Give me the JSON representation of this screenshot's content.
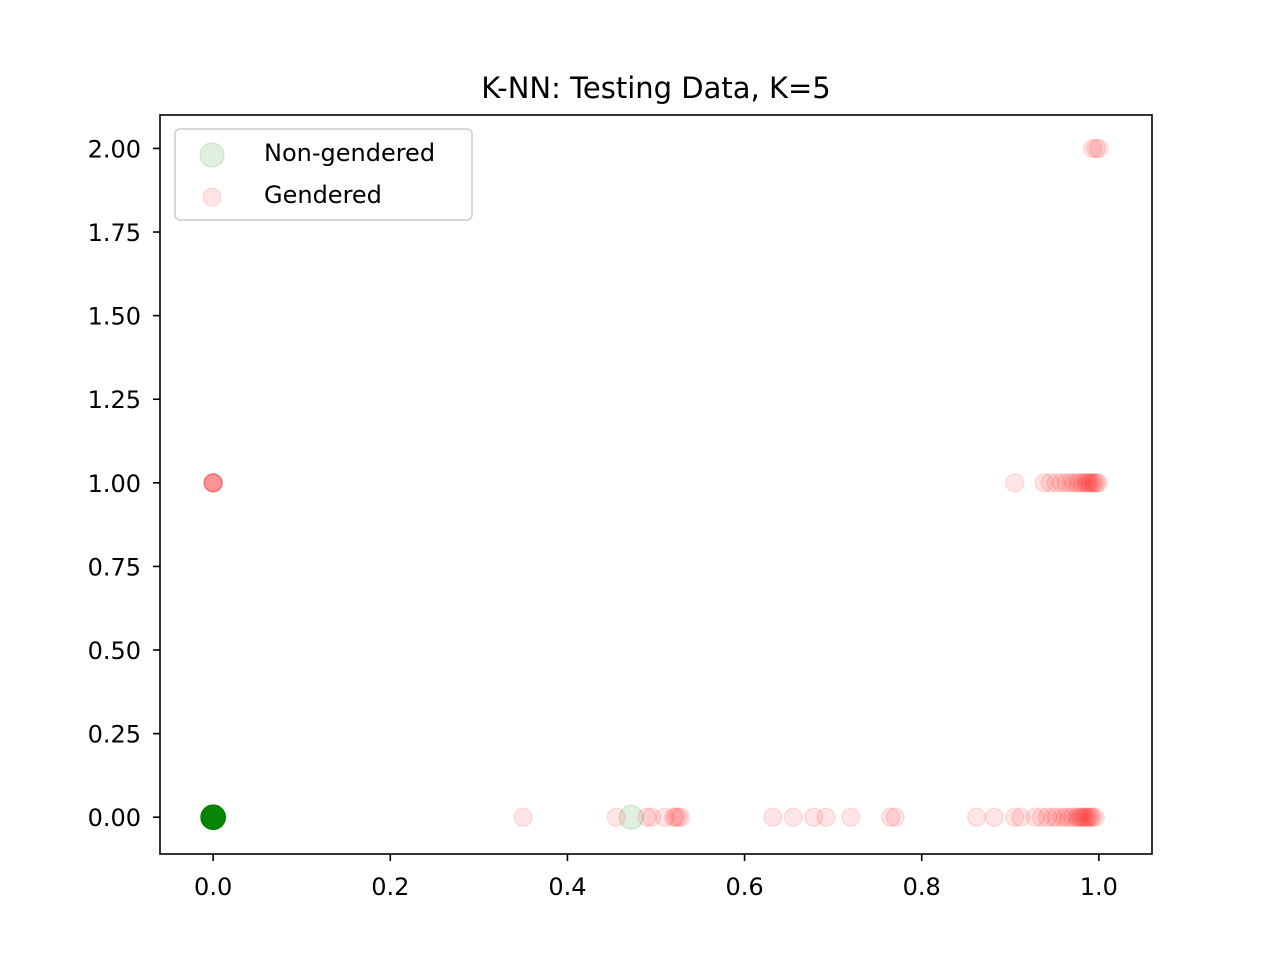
{
  "chart_data": {
    "type": "scatter",
    "title": "K-NN: Testing Data, K=5",
    "xlabel": "",
    "ylabel": "",
    "xlim": [
      -0.06,
      1.06
    ],
    "ylim": [
      -0.11,
      2.1
    ],
    "x_ticks": [
      0.0,
      0.2,
      0.4,
      0.6,
      0.8,
      1.0
    ],
    "x_tick_labels": [
      "0.0",
      "0.2",
      "0.4",
      "0.6",
      "0.8",
      "1.0"
    ],
    "y_ticks": [
      0.0,
      0.25,
      0.5,
      0.75,
      1.0,
      1.25,
      1.5,
      1.75,
      2.0
    ],
    "y_tick_labels": [
      "0.00",
      "0.25",
      "0.50",
      "0.75",
      "1.00",
      "1.25",
      "1.50",
      "1.75",
      "2.00"
    ],
    "grid": false,
    "legend_position": "upper-left",
    "series": [
      {
        "name": "Non-gendered",
        "color": "#008000",
        "opacity": 0.12,
        "points": [
          [
            0.0,
            0.0
          ],
          [
            0.0,
            0.0
          ],
          [
            0.0,
            0.0
          ],
          [
            0.0,
            0.0
          ],
          [
            0.0,
            0.0
          ],
          [
            0.0,
            0.0
          ],
          [
            0.0,
            0.0
          ],
          [
            0.0,
            0.0
          ],
          [
            0.0,
            0.0
          ],
          [
            0.0,
            0.0
          ],
          [
            0.0,
            0.0
          ],
          [
            0.0,
            0.0
          ],
          [
            0.0,
            0.0
          ],
          [
            0.0,
            0.0
          ],
          [
            0.0,
            0.0
          ],
          [
            0.0,
            0.0
          ],
          [
            0.0,
            0.0
          ],
          [
            0.0,
            0.0
          ],
          [
            0.0,
            0.0
          ],
          [
            0.0,
            0.0
          ],
          [
            0.0,
            0.0
          ],
          [
            0.0,
            0.0
          ],
          [
            0.0,
            0.0
          ],
          [
            0.0,
            0.0
          ],
          [
            0.0,
            0.0
          ],
          [
            0.472,
            0.0
          ]
        ]
      },
      {
        "name": "Gendered",
        "color": "#ff0000",
        "opacity": 0.1,
        "points": [
          [
            0.0,
            1.0
          ],
          [
            0.0,
            1.0
          ],
          [
            0.0,
            1.0
          ],
          [
            0.0,
            1.0
          ],
          [
            0.0,
            1.0
          ],
          [
            0.35,
            0.0
          ],
          [
            0.455,
            0.0
          ],
          [
            0.49,
            0.0
          ],
          [
            0.495,
            0.0
          ],
          [
            0.51,
            0.0
          ],
          [
            0.52,
            0.0
          ],
          [
            0.522,
            0.0
          ],
          [
            0.525,
            0.0
          ],
          [
            0.528,
            0.0
          ],
          [
            0.632,
            0.0
          ],
          [
            0.655,
            0.0
          ],
          [
            0.678,
            0.0
          ],
          [
            0.692,
            0.0
          ],
          [
            0.72,
            0.0
          ],
          [
            0.765,
            0.0
          ],
          [
            0.77,
            0.0
          ],
          [
            0.862,
            0.0
          ],
          [
            0.882,
            0.0
          ],
          [
            0.905,
            0.0
          ],
          [
            0.912,
            0.0
          ],
          [
            0.928,
            0.0
          ],
          [
            0.935,
            0.0
          ],
          [
            0.942,
            0.0
          ],
          [
            0.948,
            0.0
          ],
          [
            0.952,
            0.0
          ],
          [
            0.958,
            0.0
          ],
          [
            0.962,
            0.0
          ],
          [
            0.966,
            0.0
          ],
          [
            0.97,
            0.0
          ],
          [
            0.974,
            0.0
          ],
          [
            0.977,
            0.0
          ],
          [
            0.979,
            0.0
          ],
          [
            0.981,
            0.0
          ],
          [
            0.983,
            0.0
          ],
          [
            0.985,
            0.0
          ],
          [
            0.987,
            0.0
          ],
          [
            0.989,
            0.0
          ],
          [
            0.991,
            0.0
          ],
          [
            0.993,
            0.0
          ],
          [
            0.996,
            0.0
          ],
          [
            0.905,
            1.0
          ],
          [
            0.938,
            1.0
          ],
          [
            0.945,
            1.0
          ],
          [
            0.952,
            1.0
          ],
          [
            0.958,
            1.0
          ],
          [
            0.963,
            1.0
          ],
          [
            0.968,
            1.0
          ],
          [
            0.972,
            1.0
          ],
          [
            0.976,
            1.0
          ],
          [
            0.979,
            1.0
          ],
          [
            0.982,
            1.0
          ],
          [
            0.985,
            1.0
          ],
          [
            0.987,
            1.0
          ],
          [
            0.989,
            1.0
          ],
          [
            0.991,
            1.0
          ],
          [
            0.993,
            1.0
          ],
          [
            0.995,
            1.0
          ],
          [
            0.997,
            1.0
          ],
          [
            0.999,
            1.0
          ],
          [
            0.993,
            2.0
          ],
          [
            0.997,
            2.0
          ],
          [
            1.0,
            2.0
          ]
        ]
      }
    ]
  }
}
